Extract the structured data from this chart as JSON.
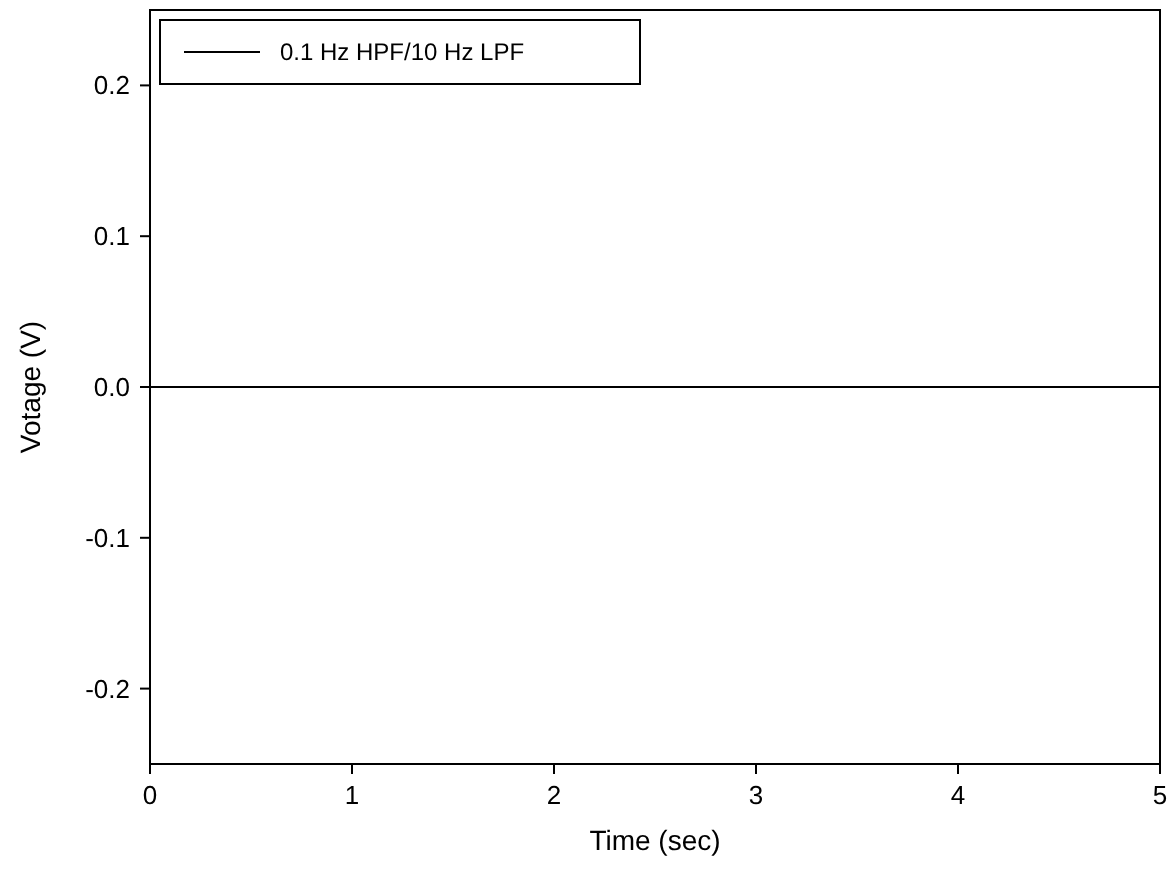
{
  "chart_data": {
    "type": "line",
    "xlabel": "Time (sec)",
    "ylabel": "Votage (V)",
    "x": [
      0,
      5
    ],
    "series": [
      {
        "name": "0.1 Hz HPF/10 Hz LPF",
        "color": "#000000",
        "values": [
          0,
          0
        ]
      }
    ],
    "xlim": [
      0,
      5
    ],
    "xticks": [
      0,
      1,
      2,
      3,
      4,
      5
    ],
    "ylim": [
      -0.25,
      0.25
    ],
    "yticks": [
      {
        "value": -0.2,
        "label": "-0.2"
      },
      {
        "value": -0.1,
        "label": "-0.1"
      },
      {
        "value": 0,
        "label": "0.0"
      },
      {
        "value": 0.1,
        "label": "0.1"
      },
      {
        "value": 0.2,
        "label": "0.2"
      }
    ],
    "legend": "top left",
    "grid": false,
    "marker": "none",
    "line_style": "solid"
  }
}
